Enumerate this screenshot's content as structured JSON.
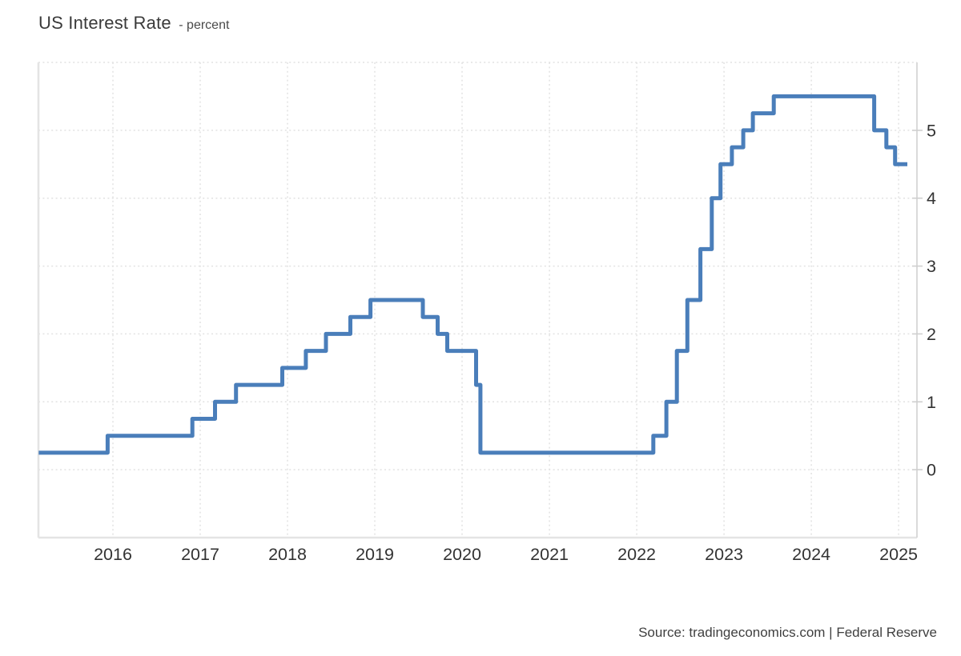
{
  "header": {
    "title": "US Interest Rate",
    "subtitle": "- percent"
  },
  "footer": {
    "source": "Source: tradingeconomics.com | Federal Reserve"
  },
  "chart_data": {
    "type": "line",
    "subtype": "step",
    "title": "US Interest Rate",
    "unit_label": "percent",
    "xlabel": "",
    "ylabel": "",
    "legend": "none",
    "grid": "dotted",
    "y_axis_side": "right",
    "x_ticks": [
      2016,
      2017,
      2018,
      2019,
      2020,
      2021,
      2022,
      2023,
      2024,
      2025
    ],
    "y_ticks": [
      0,
      1,
      2,
      3,
      4,
      5
    ],
    "x_range": [
      2015.147,
      2025.21
    ],
    "y_range": [
      -1,
      6
    ],
    "line_color": "#4a7eba",
    "grid_color": "#e2e2e2",
    "border_color": "#e4e4e4",
    "axis_line_color": "#d6d6d6",
    "tick_color": "#cfcfcf",
    "label_color": "#333333",
    "series": [
      {
        "name": "US Interest Rate (percent)",
        "points": [
          [
            2015.15,
            0.25
          ],
          [
            2015.94,
            0.5
          ],
          [
            2016.91,
            0.75
          ],
          [
            2017.17,
            1.0
          ],
          [
            2017.41,
            1.25
          ],
          [
            2017.94,
            1.5
          ],
          [
            2018.21,
            1.75
          ],
          [
            2018.44,
            2.0
          ],
          [
            2018.72,
            2.25
          ],
          [
            2018.95,
            2.5
          ],
          [
            2019.55,
            2.25
          ],
          [
            2019.72,
            2.0
          ],
          [
            2019.83,
            1.75
          ],
          [
            2020.16,
            1.25
          ],
          [
            2020.21,
            0.25
          ],
          [
            2022.19,
            0.5
          ],
          [
            2022.34,
            1.0
          ],
          [
            2022.46,
            1.75
          ],
          [
            2022.58,
            2.5
          ],
          [
            2022.73,
            3.25
          ],
          [
            2022.86,
            4.0
          ],
          [
            2022.96,
            4.5
          ],
          [
            2023.09,
            4.75
          ],
          [
            2023.22,
            5.0
          ],
          [
            2023.33,
            5.25
          ],
          [
            2023.57,
            5.5
          ],
          [
            2024.72,
            5.0
          ],
          [
            2024.86,
            4.75
          ],
          [
            2024.96,
            4.5
          ]
        ],
        "end_x": 2025.1
      }
    ]
  }
}
